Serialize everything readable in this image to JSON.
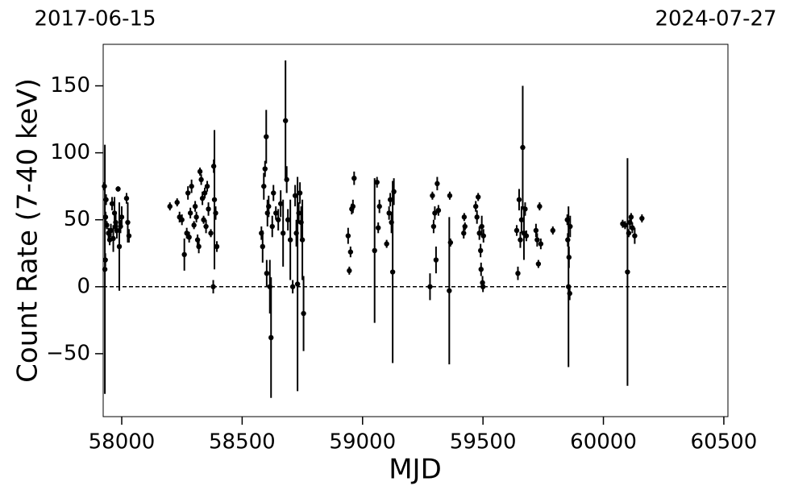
{
  "chart_data": {
    "type": "errorbar-scatter",
    "xlabel": "MJD",
    "ylabel": "Count Rate (7-40 keV)",
    "top_left_label": "2017-06-15",
    "top_right_label": "2024-07-27",
    "xlim": [
      57923,
      60517
    ],
    "ylim": [
      -97,
      181
    ],
    "xticks": [
      58000,
      58500,
      59000,
      59500,
      60000,
      60500
    ],
    "yticks": [
      {
        "value": -50,
        "label": "−50"
      },
      0,
      50,
      100,
      150
    ],
    "hline": 0,
    "color": "#000000",
    "x": [
      57928,
      57930,
      57932,
      57933,
      57935,
      57938,
      57945,
      57950,
      57955,
      57960,
      57965,
      57970,
      57975,
      57980,
      57985,
      57990,
      57995,
      58000,
      58020,
      58025,
      58030,
      58200,
      58230,
      58240,
      58250,
      58260,
      58270,
      58275,
      58280,
      58285,
      58290,
      58300,
      58305,
      58310,
      58315,
      58320,
      58325,
      58330,
      58335,
      58340,
      58345,
      58350,
      58355,
      58360,
      58370,
      58380,
      58382,
      58385,
      58390,
      58395,
      58580,
      58585,
      58590,
      58595,
      58600,
      58602,
      58605,
      58610,
      58615,
      58620,
      58625,
      58630,
      58640,
      58650,
      58660,
      58670,
      58680,
      58685,
      58690,
      58700,
      58710,
      58720,
      58725,
      58730,
      58735,
      58740,
      58745,
      58750,
      58755,
      58940,
      58945,
      58950,
      58955,
      58960,
      58965,
      59050,
      59060,
      59065,
      59070,
      59100,
      59110,
      59115,
      59120,
      59125,
      59130,
      59280,
      59290,
      59295,
      59300,
      59305,
      59310,
      59315,
      59360,
      59362,
      59365,
      59420,
      59422,
      59425,
      59470,
      59475,
      59480,
      59485,
      59490,
      59492,
      59495,
      59498,
      59500,
      59502,
      59640,
      59645,
      59650,
      59655,
      59660,
      59665,
      59670,
      59675,
      59680,
      59720,
      59725,
      59730,
      59735,
      59740,
      59790,
      59850,
      59852,
      59855,
      59857,
      59860,
      59862,
      60080,
      60090,
      60100,
      60105,
      60110,
      60115,
      60120,
      60130,
      60160
    ],
    "y": [
      75,
      13,
      20,
      52,
      65,
      46,
      40,
      35,
      42,
      62,
      36,
      55,
      48,
      42,
      73,
      30,
      45,
      52,
      66,
      48,
      38,
      60,
      63,
      52,
      50,
      24,
      40,
      70,
      37,
      55,
      75,
      46,
      60,
      52,
      35,
      30,
      86,
      80,
      66,
      50,
      70,
      45,
      75,
      58,
      40,
      0,
      90,
      65,
      55,
      30,
      40,
      30,
      75,
      88,
      112,
      10,
      55,
      60,
      0,
      -38,
      45,
      70,
      55,
      50,
      62,
      40,
      124,
      80,
      50,
      35,
      0,
      68,
      40,
      2,
      55,
      70,
      48,
      35,
      -20,
      38,
      12,
      26,
      58,
      60,
      81,
      27,
      78,
      44,
      60,
      32,
      55,
      65,
      48,
      11,
      71,
      0,
      68,
      45,
      55,
      20,
      77,
      57,
      -3,
      68,
      33,
      40,
      52,
      45,
      60,
      52,
      67,
      40,
      27,
      13,
      45,
      3,
      0,
      38,
      42,
      10,
      65,
      35,
      50,
      104,
      40,
      58,
      38,
      42,
      35,
      17,
      60,
      32,
      42,
      50,
      35,
      0,
      22,
      -5,
      45,
      47,
      46,
      11,
      40,
      48,
      52,
      44,
      38,
      51
    ],
    "yerr": [
      3,
      93,
      5,
      4,
      4,
      3,
      4,
      4,
      5,
      5,
      10,
      12,
      8,
      6,
      2,
      33,
      5,
      8,
      4,
      15,
      5,
      3,
      3,
      4,
      4,
      12,
      4,
      5,
      4,
      4,
      5,
      3,
      4,
      4,
      4,
      5,
      3,
      4,
      5,
      3,
      4,
      5,
      4,
      5,
      3,
      5,
      5,
      52,
      5,
      4,
      5,
      12,
      10,
      6,
      20,
      10,
      10,
      8,
      20,
      45,
      8,
      6,
      5,
      8,
      10,
      25,
      45,
      10,
      8,
      30,
      5,
      8,
      10,
      80,
      8,
      8,
      12,
      30,
      28,
      6,
      3,
      4,
      4,
      5,
      5,
      54,
      4,
      4,
      5,
      3,
      5,
      5,
      8,
      68,
      10,
      10,
      3,
      5,
      5,
      10,
      5,
      4,
      55,
      3,
      3,
      4,
      3,
      3,
      4,
      5,
      3,
      5,
      5,
      5,
      8,
      5,
      4,
      5,
      4,
      5,
      8,
      6,
      10,
      46,
      20,
      5,
      4,
      5,
      5,
      3,
      3,
      4,
      3,
      4,
      5,
      60,
      8,
      5,
      8,
      3,
      3,
      85,
      3,
      5,
      3,
      4,
      6,
      3
    ]
  }
}
